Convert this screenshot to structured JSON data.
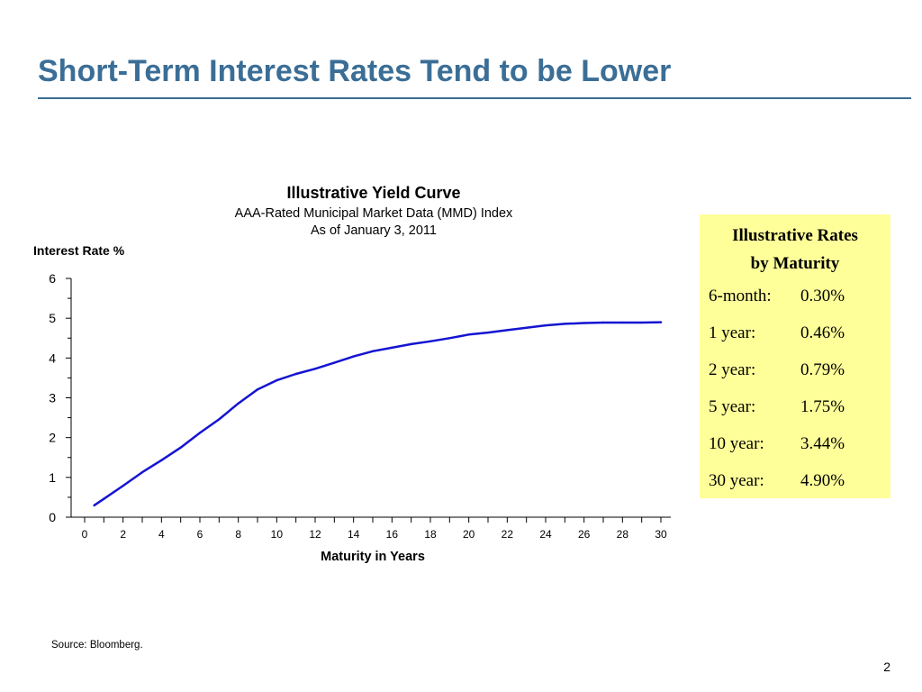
{
  "slide": {
    "title": "Short-Term Interest Rates Tend to be Lower",
    "source": "Source: Bloomberg.",
    "page_number": "2"
  },
  "colors": {
    "title": "#3b6e96",
    "curve": "#1414d2",
    "box_background": "#ffff99"
  },
  "rates_box": {
    "heading_line1": "Illustrative Rates",
    "heading_line2": "by Maturity",
    "rows": [
      {
        "term": "6-month:",
        "rate": "0.30%"
      },
      {
        "term": "1 year:",
        "rate": "0.46%"
      },
      {
        "term": "2 year:",
        "rate": "0.79%"
      },
      {
        "term": "5 year:",
        "rate": "1.75%"
      },
      {
        "term": "10 year:",
        "rate": "3.44%"
      },
      {
        "term": "30 year:",
        "rate": "4.90%"
      }
    ]
  },
  "chart_data": {
    "type": "line",
    "title": "Illustrative Yield Curve",
    "subtitle_line1": "AAA-Rated Municipal Market Data (MMD) Index",
    "subtitle_line2": "As of January 3, 2011",
    "xlabel": "Maturity in Years",
    "ylabel": "Interest Rate %",
    "xlim": [
      0,
      30
    ],
    "ylim": [
      0,
      6
    ],
    "x_ticks": [
      0,
      2,
      4,
      6,
      8,
      10,
      12,
      14,
      16,
      18,
      20,
      22,
      24,
      26,
      28,
      30
    ],
    "y_ticks": [
      0,
      1,
      2,
      3,
      4,
      5,
      6
    ],
    "grid": false,
    "series": [
      {
        "x": [
          0.5,
          1,
          2,
          3,
          4,
          5,
          6,
          7,
          8,
          9,
          10,
          11,
          12,
          13,
          14,
          15,
          16,
          17,
          18,
          19,
          20,
          21,
          22,
          23,
          24,
          25,
          26,
          27,
          28,
          29,
          30
        ],
        "y": [
          0.3,
          0.46,
          0.79,
          1.13,
          1.43,
          1.75,
          2.12,
          2.46,
          2.86,
          3.21,
          3.44,
          3.6,
          3.73,
          3.88,
          4.04,
          4.17,
          4.26,
          4.35,
          4.42,
          4.5,
          4.59,
          4.64,
          4.7,
          4.76,
          4.82,
          4.86,
          4.88,
          4.89,
          4.89,
          4.89,
          4.9
        ]
      }
    ]
  }
}
